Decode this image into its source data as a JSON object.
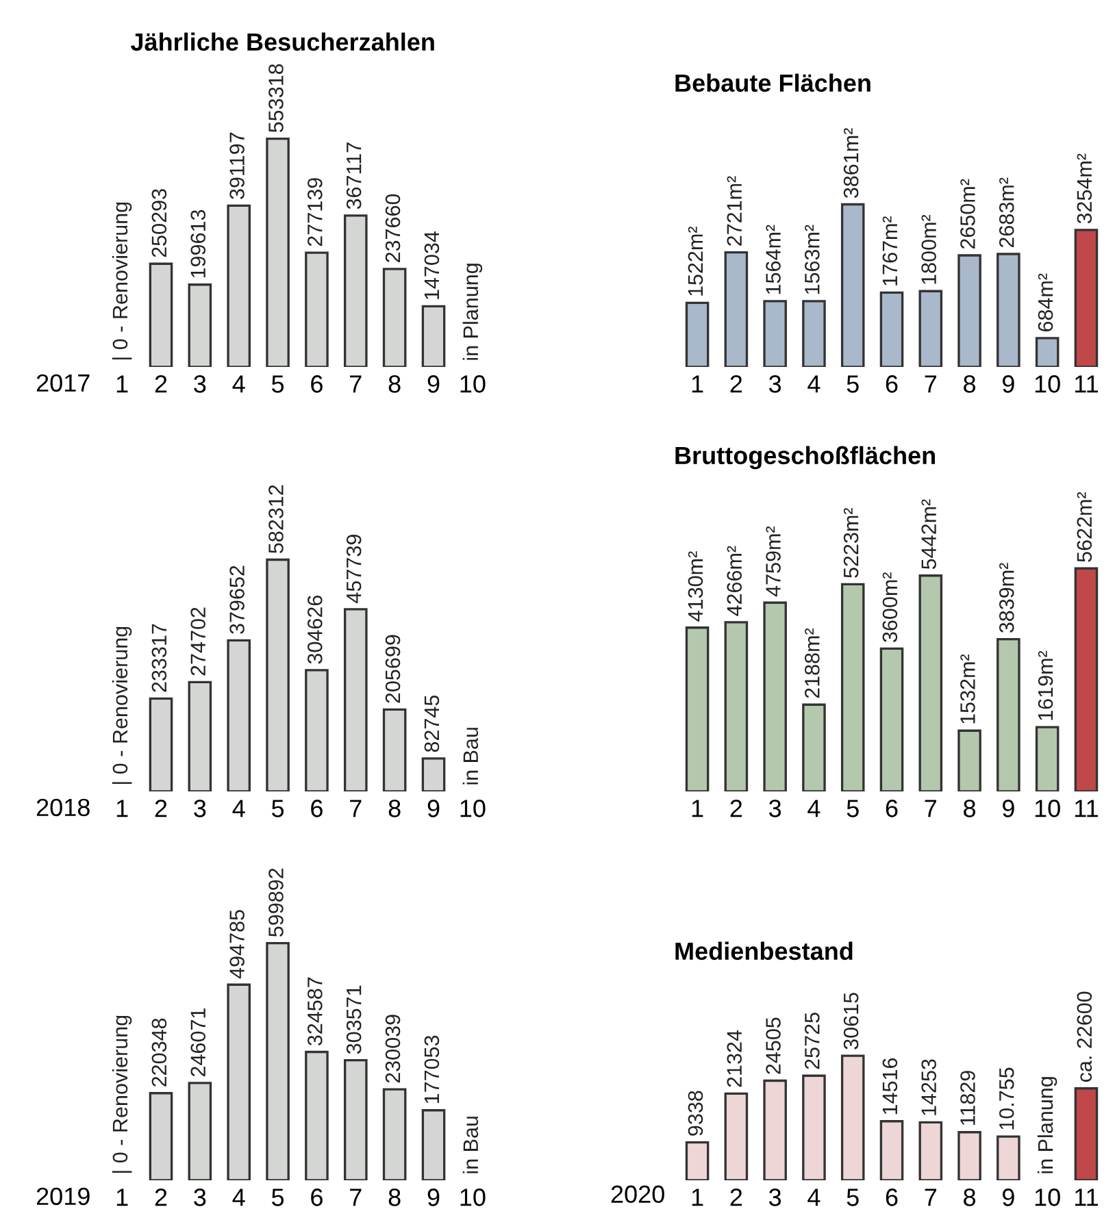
{
  "chart_data": [
    {
      "type": "bar",
      "title": "Jährliche Besucherzahlen",
      "xlabel": "2017",
      "categories": [
        "1",
        "2",
        "3",
        "4",
        "5",
        "6",
        "7",
        "8",
        "9",
        "10"
      ],
      "values": [
        0,
        250293,
        199613,
        391197,
        553318,
        277139,
        367117,
        237660,
        147034,
        null
      ],
      "color": "#d4d6d4",
      "value_labels": [
        "| 0 - Renovierung",
        "250293",
        "199613",
        "391197",
        "553318",
        "277139",
        "367117",
        "237660",
        "147034",
        "in Planung"
      ]
    },
    {
      "type": "bar",
      "title": "Bebaute Flächen",
      "categories": [
        "1",
        "2",
        "3",
        "4",
        "5",
        "6",
        "7",
        "8",
        "9",
        "10",
        "11"
      ],
      "values": [
        1522,
        2721,
        1564,
        1563,
        3861,
        1767,
        1800,
        2650,
        2683,
        684,
        3254
      ],
      "colors": [
        "#a9b8ca",
        "#a9b8ca",
        "#a9b8ca",
        "#a9b8ca",
        "#a9b8ca",
        "#a9b8ca",
        "#a9b8ca",
        "#a9b8ca",
        "#a9b8ca",
        "#a9b8ca",
        "#c0474a"
      ],
      "value_labels": [
        "1522m²",
        "2721m²",
        "1564m²",
        "1563m²",
        "3861m²",
        "1767m²",
        "1800m²",
        "2650m²",
        "2683m²",
        "684m²",
        "3254m²"
      ]
    },
    {
      "type": "bar",
      "xlabel": "2018",
      "categories": [
        "1",
        "2",
        "3",
        "4",
        "5",
        "6",
        "7",
        "8",
        "9",
        "10"
      ],
      "values": [
        0,
        233317,
        274702,
        379652,
        582312,
        304626,
        457739,
        205699,
        82745,
        null
      ],
      "color": "#d4d6d4",
      "value_labels": [
        "| 0 - Renovierung",
        "233317",
        "274702",
        "379652",
        "582312",
        "304626",
        "457739",
        "205699",
        "82745",
        "in Bau"
      ]
    },
    {
      "type": "bar",
      "title": "Bruttogeschoßflächen",
      "categories": [
        "1",
        "2",
        "3",
        "4",
        "5",
        "6",
        "7",
        "8",
        "9",
        "10",
        "11"
      ],
      "values": [
        4130,
        4266,
        4759,
        2188,
        5223,
        3600,
        5442,
        1532,
        3839,
        1619,
        5622
      ],
      "colors": [
        "#b3c8ac",
        "#b3c8ac",
        "#b3c8ac",
        "#b3c8ac",
        "#b3c8ac",
        "#b3c8ac",
        "#b3c8ac",
        "#b3c8ac",
        "#b3c8ac",
        "#b3c8ac",
        "#c0474a"
      ],
      "value_labels": [
        "4130m²",
        "4266m²",
        "4759m²",
        "2188m²",
        "5223m²",
        "3600m²",
        "5442m²",
        "1532m²",
        "3839m²",
        "1619m²",
        "5622m²"
      ]
    },
    {
      "type": "bar",
      "xlabel": "2019",
      "categories": [
        "1",
        "2",
        "3",
        "4",
        "5",
        "6",
        "7",
        "8",
        "9",
        "10"
      ],
      "values": [
        0,
        220348,
        246071,
        494785,
        599892,
        324587,
        303571,
        230039,
        177053,
        null
      ],
      "color": "#d4d6d4",
      "value_labels": [
        "| 0 - Renovierung",
        "220348",
        "246071",
        "494785",
        "599892",
        "324587",
        "303571",
        "230039",
        "177053",
        "in Bau"
      ]
    },
    {
      "type": "bar",
      "title": "Medienbestand",
      "xlabel": "2020",
      "categories": [
        "1",
        "2",
        "3",
        "4",
        "5",
        "6",
        "7",
        "8",
        "9",
        "10",
        "11"
      ],
      "values": [
        9338,
        21324,
        24505,
        25725,
        30615,
        14516,
        14253,
        11829,
        10755,
        null,
        22600
      ],
      "colors": [
        "#eed6d6",
        "#eed6d6",
        "#eed6d6",
        "#eed6d6",
        "#eed6d6",
        "#eed6d6",
        "#eed6d6",
        "#eed6d6",
        "#eed6d6",
        "#eed6d6",
        "#c0474a"
      ],
      "value_labels": [
        "9338",
        "21324",
        "24505",
        "25725",
        "30615",
        "14516",
        "14253",
        "11829",
        "10.755",
        "in Planung",
        "ca. 22600"
      ]
    }
  ]
}
